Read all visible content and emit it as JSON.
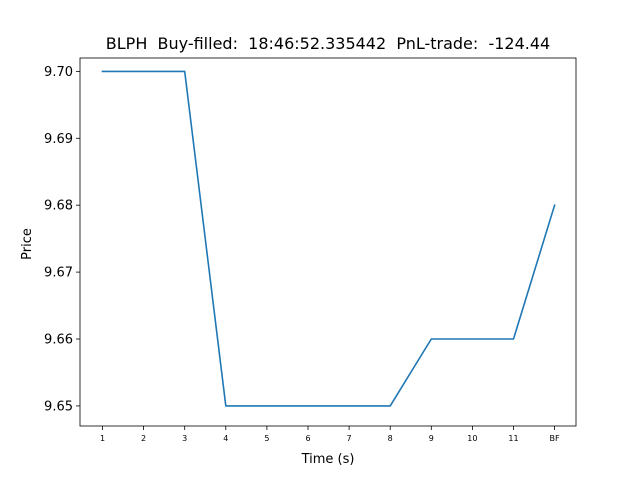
{
  "chart_data": {
    "type": "line",
    "title": "BLPH  Buy-filled:  18:46:52.335442  PnL-trade:  -124.44",
    "xlabel": "Time (s)",
    "ylabel": "Price",
    "categories": [
      "1",
      "2",
      "3",
      "4",
      "5",
      "6",
      "7",
      "8",
      "9",
      "10",
      "11",
      "BF"
    ],
    "series": [
      {
        "values": [
          9.7,
          9.7,
          9.7,
          9.65,
          9.65,
          9.65,
          9.65,
          9.65,
          9.66,
          9.66,
          9.66,
          9.68
        ]
      }
    ],
    "ylim": [
      9.647,
      9.702
    ],
    "yticks": [
      "9.65",
      "9.66",
      "9.67",
      "9.68",
      "9.69",
      "9.70"
    ],
    "grid": false,
    "line_color": "#1f77b4"
  }
}
